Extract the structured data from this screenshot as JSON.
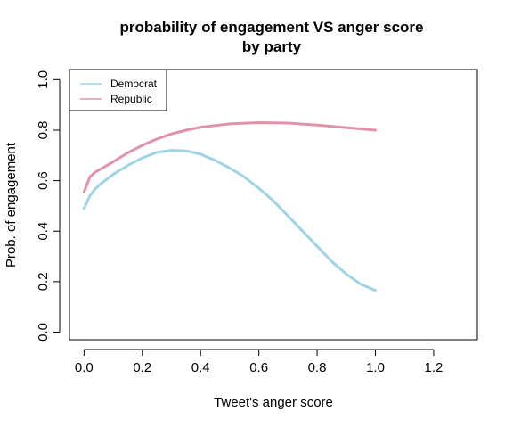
{
  "chart_data": {
    "type": "line",
    "title_line1": "probability of engagement VS anger score",
    "title_line2": "by party",
    "xlabel": "Tweet's anger score",
    "ylabel": "Prob. of engagement",
    "xlim": [
      -0.05,
      1.35
    ],
    "ylim": [
      -0.03,
      1.04
    ],
    "xticks": [
      "0.0",
      "0.2",
      "0.4",
      "0.6",
      "0.8",
      "1.0",
      "1.2"
    ],
    "yticks": [
      "0.0",
      "0.2",
      "0.4",
      "0.6",
      "0.8",
      "1.0"
    ],
    "legend": {
      "position": "top-left"
    },
    "grid": false,
    "series": [
      {
        "name": "Democrat",
        "color": "#9fd3e6",
        "x": [
          0,
          0.02,
          0.04,
          0.06,
          0.1,
          0.15,
          0.2,
          0.25,
          0.3,
          0.35,
          0.4,
          0.45,
          0.5,
          0.55,
          0.6,
          0.65,
          0.7,
          0.75,
          0.8,
          0.85,
          0.9,
          0.95,
          1.0
        ],
        "values": [
          0.49,
          0.54,
          0.57,
          0.59,
          0.625,
          0.66,
          0.69,
          0.712,
          0.72,
          0.718,
          0.705,
          0.68,
          0.65,
          0.615,
          0.57,
          0.52,
          0.46,
          0.4,
          0.34,
          0.28,
          0.23,
          0.19,
          0.165
        ]
      },
      {
        "name": "Republic",
        "color": "#e093a8",
        "x": [
          0,
          0.01,
          0.02,
          0.04,
          0.06,
          0.1,
          0.15,
          0.2,
          0.25,
          0.3,
          0.35,
          0.4,
          0.5,
          0.6,
          0.7,
          0.8,
          0.9,
          1.0
        ],
        "values": [
          0.555,
          0.585,
          0.615,
          0.635,
          0.648,
          0.675,
          0.71,
          0.74,
          0.765,
          0.785,
          0.8,
          0.812,
          0.825,
          0.83,
          0.828,
          0.82,
          0.81,
          0.8
        ]
      }
    ]
  }
}
